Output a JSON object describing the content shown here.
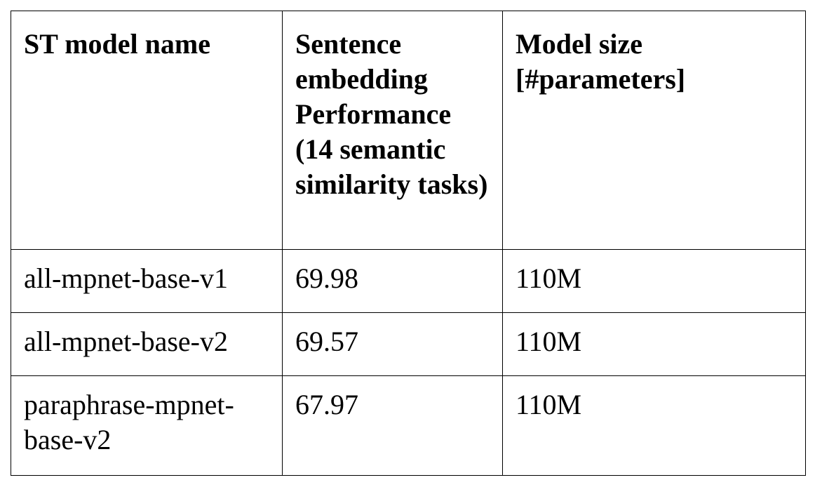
{
  "table": {
    "headers": [
      "ST model name",
      "Sentence embedding Performance (14 semantic similarity tasks)",
      "Model size [#parameters]"
    ],
    "rows": [
      [
        "all-mpnet-base-v1",
        "69.98",
        "110M"
      ],
      [
        "all-mpnet-base-v2",
        "69.57",
        "110M"
      ],
      [
        "paraphrase-mpnet-base-v2",
        "67.97",
        "110M"
      ]
    ]
  }
}
